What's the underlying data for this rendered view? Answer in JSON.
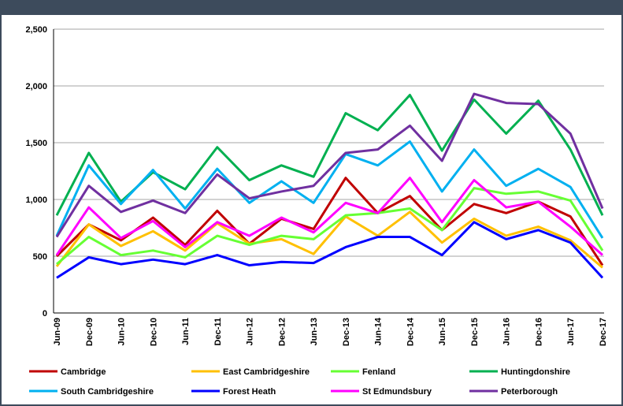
{
  "chart_data": {
    "type": "line",
    "categories": [
      "Jun-09",
      "Dec-09",
      "Jun-10",
      "Dec-10",
      "Jun-11",
      "Dec-11",
      "Jun-12",
      "Dec-12",
      "Jun-13",
      "Dec-13",
      "Jun-14",
      "Dec-14",
      "Jun-15",
      "Dec-15",
      "Jun-16",
      "Dec-16",
      "Jun-17",
      "Dec-17"
    ],
    "ylim": [
      0,
      2500
    ],
    "yticks": [
      0,
      500,
      {
        "value": 1000,
        "label": "1,000"
      },
      {
        "value": 1500,
        "label": "1,500"
      },
      {
        "value": 2000,
        "label": "2,000"
      },
      {
        "value": 2500,
        "label": "2,500"
      }
    ],
    "grid": true,
    "series": [
      {
        "name": "Cambridge",
        "color": "#c00000",
        "values": [
          500,
          780,
          640,
          840,
          600,
          900,
          610,
          830,
          740,
          1190,
          880,
          1030,
          730,
          960,
          880,
          980,
          850,
          420
        ]
      },
      {
        "name": "East Cambridgeshire",
        "color": "#ffc000",
        "values": [
          410,
          780,
          590,
          720,
          550,
          790,
          610,
          650,
          520,
          850,
          680,
          890,
          620,
          830,
          680,
          760,
          640,
          400
        ]
      },
      {
        "name": "Fenland",
        "color": "#66ff33",
        "values": [
          430,
          670,
          510,
          550,
          490,
          680,
          600,
          680,
          650,
          860,
          880,
          920,
          730,
          1100,
          1050,
          1070,
          990,
          550
        ]
      },
      {
        "name": "Huntingdonshire",
        "color": "#00b050",
        "values": [
          860,
          1410,
          980,
          1240,
          1090,
          1460,
          1170,
          1300,
          1200,
          1760,
          1610,
          1920,
          1430,
          1880,
          1580,
          1870,
          1440,
          860
        ]
      },
      {
        "name": "South Cambridgeshire",
        "color": "#00b0f0",
        "values": [
          680,
          1300,
          960,
          1260,
          920,
          1270,
          970,
          1160,
          970,
          1400,
          1300,
          1510,
          1070,
          1440,
          1120,
          1270,
          1110,
          660
        ]
      },
      {
        "name": "Forest Heath",
        "color": "#0000ff",
        "values": [
          310,
          490,
          430,
          470,
          430,
          510,
          420,
          450,
          440,
          580,
          670,
          670,
          510,
          800,
          650,
          730,
          620,
          310
        ]
      },
      {
        "name": "St Edmundsbury",
        "color": "#ff00ff",
        "values": [
          510,
          930,
          660,
          810,
          580,
          800,
          680,
          840,
          710,
          970,
          880,
          1190,
          800,
          1170,
          930,
          980,
          760,
          510
        ]
      },
      {
        "name": "Peterborough",
        "color": "#7030a0",
        "values": [
          670,
          1120,
          890,
          990,
          880,
          1220,
          1010,
          1070,
          1120,
          1410,
          1440,
          1650,
          1340,
          1930,
          1850,
          1840,
          1580,
          920
        ]
      }
    ]
  }
}
